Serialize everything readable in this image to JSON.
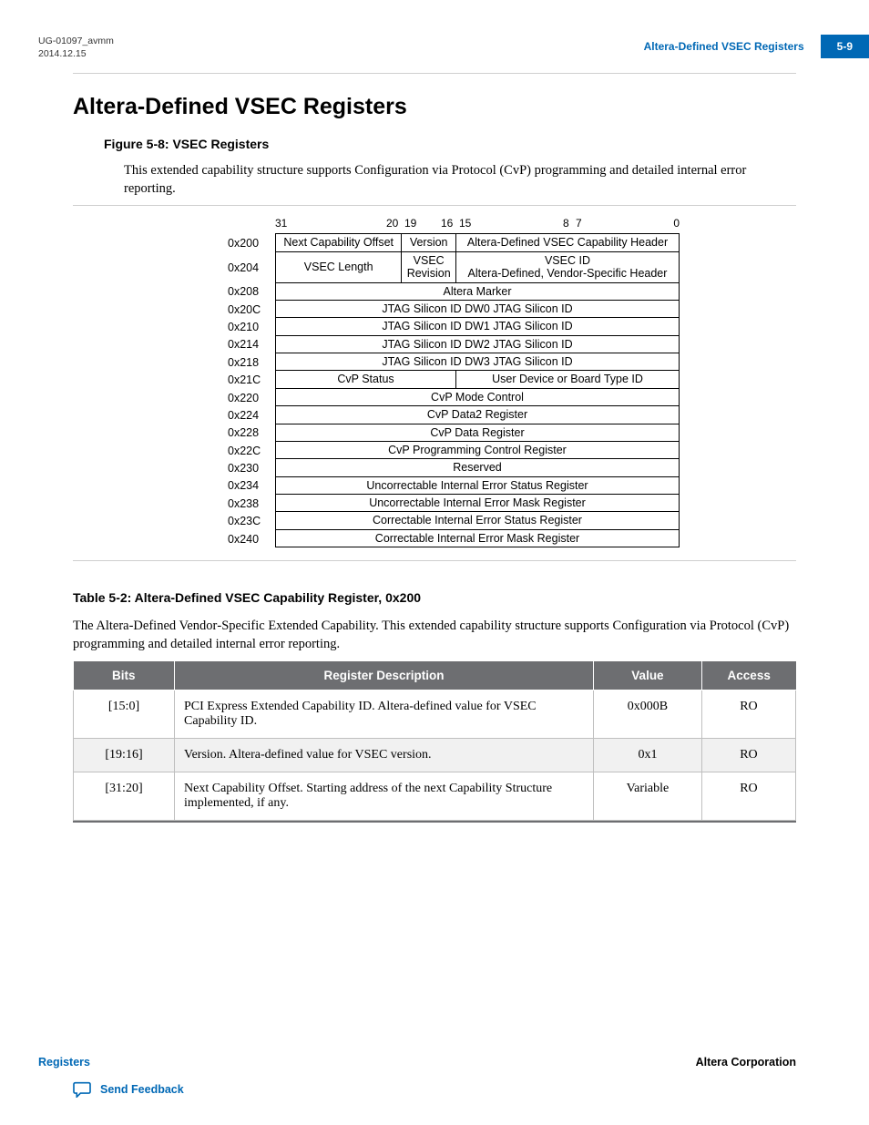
{
  "header": {
    "doc_id": "UG-01097_avmm",
    "date": "2014.12.15",
    "section_title": "Altera-Defined VSEC Registers",
    "page_num": "5-9"
  },
  "colors": {
    "brand_blue": "#0068b5",
    "table_header_bg": "#6d6e71",
    "table_header_fg": "#ffffff",
    "row_alt_bg": "#f1f1f1",
    "rule": "#cfcfcf",
    "border": "#bfbfbf"
  },
  "section_heading": "Altera-Defined VSEC Registers",
  "figure": {
    "caption": "Figure 5-8: VSEC Registers",
    "intro": "This extended capability structure supports Configuration via Protocol (CvP) programming and detailed internal error reporting.",
    "bit_labels": {
      "l31": "31",
      "l20": "20",
      "l19": "19",
      "l16": "16",
      "l15": "15",
      "l8": "8",
      "l7": "7",
      "l0": "0"
    },
    "rows": [
      {
        "addr": "0x200",
        "cells": [
          {
            "w": "w-nco",
            "text": "Next Capability Offset"
          },
          {
            "w": "w-ver",
            "text": "Version"
          },
          {
            "w": "w-half",
            "text": "Altera-Defined VSEC Capability Header"
          }
        ]
      },
      {
        "addr": "0x204",
        "cells": [
          {
            "w": "w-nco",
            "text": "VSEC Length"
          },
          {
            "w": "w-ver",
            "text": "VSEC\nRevision"
          },
          {
            "w": "w-half",
            "text": "VSEC ID\nAltera-Defined, Vendor-Specific Header"
          }
        ]
      },
      {
        "addr": "0x208",
        "cells": [
          {
            "w": "w-full",
            "text": "Altera Marker"
          }
        ]
      },
      {
        "addr": "0x20C",
        "cells": [
          {
            "w": "w-full",
            "text": "JTAG Silicon ID DW0 JTAG Silicon ID"
          }
        ]
      },
      {
        "addr": "0x210",
        "cells": [
          {
            "w": "w-full",
            "text": "JTAG Silicon ID DW1 JTAG Silicon ID"
          }
        ]
      },
      {
        "addr": "0x214",
        "cells": [
          {
            "w": "w-full",
            "text": "JTAG Silicon ID DW2 JTAG Silicon ID"
          }
        ]
      },
      {
        "addr": "0x218",
        "cells": [
          {
            "w": "w-full",
            "text": "JTAG Silicon ID DW3 JTAG Silicon ID"
          }
        ]
      },
      {
        "addr": "0x21C",
        "cells": [
          {
            "w": "w-cvps",
            "text": "CvP Status"
          },
          {
            "w": "w-udb",
            "text": "User Device or Board Type ID"
          }
        ]
      },
      {
        "addr": "0x220",
        "cells": [
          {
            "w": "w-full",
            "text": "CvP Mode Control"
          }
        ]
      },
      {
        "addr": "0x224",
        "cells": [
          {
            "w": "w-full",
            "text": "CvP Data2 Register"
          }
        ]
      },
      {
        "addr": "0x228",
        "cells": [
          {
            "w": "w-full",
            "text": "CvP Data Register"
          }
        ]
      },
      {
        "addr": "0x22C",
        "cells": [
          {
            "w": "w-full",
            "text": "CvP Programming Control Register"
          }
        ]
      },
      {
        "addr": "0x230",
        "cells": [
          {
            "w": "w-full",
            "text": "Reserved"
          }
        ]
      },
      {
        "addr": "0x234",
        "cells": [
          {
            "w": "w-full",
            "text": "Uncorrectable Internal Error Status Register"
          }
        ]
      },
      {
        "addr": "0x238",
        "cells": [
          {
            "w": "w-full",
            "text": "Uncorrectable Internal Error Mask Register"
          }
        ]
      },
      {
        "addr": "0x23C",
        "cells": [
          {
            "w": "w-full",
            "text": "Correctable Internal Error Status Register"
          }
        ]
      },
      {
        "addr": "0x240",
        "cells": [
          {
            "w": "w-full",
            "text": "Correctable Internal Error Mask Register"
          }
        ]
      }
    ]
  },
  "table": {
    "caption": "Table 5-2: Altera-Defined VSEC Capability Register, 0x200",
    "intro": "The Altera‑Defined Vendor‑Specific Extended Capability. This extended capability structure supports Configuration via Protocol (CvP) programming and detailed internal error reporting.",
    "columns": [
      "Bits",
      "Register Description",
      "Value",
      "Access"
    ],
    "rows": [
      [
        "[15:0]",
        "PCI Express Extended Capability ID. Altera-defined value for VSEC Capability ID.",
        "0x000B",
        "RO"
      ],
      [
        "[19:16]",
        "Version. Altera-defined value for VSEC version.",
        "0x1",
        "RO"
      ],
      [
        "[31:20]",
        "Next Capability Offset. Starting address of the next Capability Structure implemented, if any.",
        "Variable",
        "RO"
      ]
    ]
  },
  "footer": {
    "left_link": "Registers",
    "right_text": "Altera Corporation",
    "feedback": "Send Feedback"
  }
}
